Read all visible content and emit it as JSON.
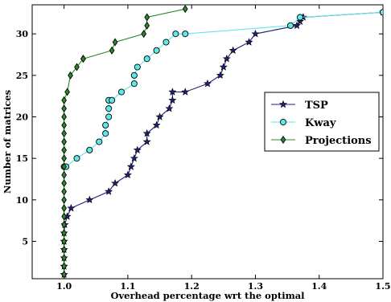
{
  "chart_data": {
    "type": "line",
    "title": "",
    "xlabel": "Overhead percentage wrt the optimal",
    "ylabel": "Number of matrices",
    "xlim": [
      0.95,
      1.5
    ],
    "ylim": [
      0.5,
      33.5
    ],
    "xticks": [
      1.0,
      1.1,
      1.2,
      1.3,
      1.4,
      1.5
    ],
    "xtick_labels": [
      "1.0",
      "1.1",
      "1.2",
      "1.3",
      "1.4",
      "1.5"
    ],
    "yticks": [
      5,
      10,
      15,
      20,
      25,
      30
    ],
    "ytick_labels": [
      "5",
      "10",
      "15",
      "20",
      "25",
      "30"
    ],
    "grid": false,
    "legend_position": "center-right",
    "series": [
      {
        "name": "TSP",
        "color": "#1f1f7a",
        "marker": "star",
        "x": [
          1.0,
          1.0,
          1.0,
          1.0,
          1.0,
          1.0,
          1.001,
          1.005,
          1.011,
          1.04,
          1.07,
          1.08,
          1.1,
          1.105,
          1.11,
          1.115,
          1.13,
          1.13,
          1.145,
          1.15,
          1.165,
          1.17,
          1.17,
          1.19,
          1.225,
          1.245,
          1.25,
          1.255,
          1.265,
          1.29,
          1.3,
          1.365,
          1.37,
          1.375,
          1.5
        ],
        "y": [
          1,
          2,
          3,
          4,
          5,
          6,
          7,
          8,
          9,
          10,
          11,
          12,
          13,
          14,
          15,
          16,
          17,
          18,
          19,
          20,
          21,
          22,
          23,
          23,
          24,
          25,
          26,
          27,
          28,
          29,
          30,
          31,
          31.5,
          32,
          32.6
        ]
      },
      {
        "name": "Kway",
        "color": "#5ee8e8",
        "marker": "circle",
        "x": [
          1.0,
          1.003,
          1.02,
          1.04,
          1.055,
          1.065,
          1.065,
          1.07,
          1.07,
          1.07,
          1.075,
          1.09,
          1.11,
          1.11,
          1.115,
          1.13,
          1.145,
          1.16,
          1.175,
          1.19,
          1.355,
          1.37,
          1.5
        ],
        "y": [
          14,
          14,
          15,
          16,
          17,
          18,
          19,
          20,
          21,
          22,
          22,
          23,
          24,
          25,
          26,
          27,
          28,
          29,
          30,
          30,
          31,
          32,
          32.6
        ]
      },
      {
        "name": "Projections",
        "color": "#2a8a2a",
        "marker": "diamond",
        "x": [
          1.0,
          1.0,
          1.0,
          1.0,
          1.0,
          1.0,
          1.0,
          1.0,
          1.0,
          1.0,
          1.0,
          1.0,
          1.0,
          1.0,
          1.0,
          1.0,
          1.0,
          1.0,
          1.0,
          1.0,
          1.0,
          1.0,
          1.005,
          1.01,
          1.02,
          1.03,
          1.03,
          1.075,
          1.08,
          1.125,
          1.13,
          1.13,
          1.19
        ],
        "y": [
          1,
          2,
          3,
          4,
          5,
          6,
          7,
          8,
          9,
          10,
          11,
          12,
          13,
          14,
          15,
          16,
          17,
          18,
          19,
          20,
          21,
          22,
          23,
          25,
          26,
          27,
          27,
          28,
          29,
          30,
          31,
          32,
          33
        ]
      }
    ]
  }
}
